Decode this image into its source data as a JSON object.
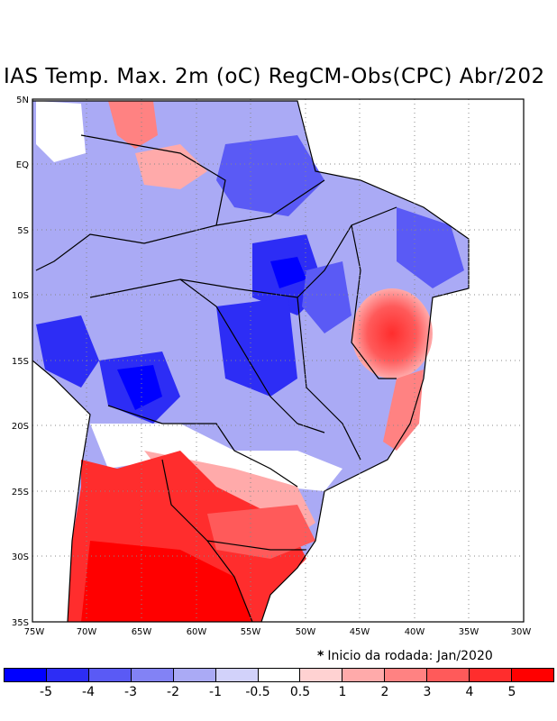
{
  "title": "IAS Temp. Max. 2m (oC) RegCM-Obs(CPC) Abr/202",
  "note": "Inicio da rodada: Jan/2020",
  "axes": {
    "lat_labels": [
      "5N",
      "EQ",
      "5S",
      "10S",
      "15S",
      "20S",
      "25S",
      "30S",
      "35S"
    ],
    "lon_labels": [
      "75W",
      "70W",
      "65W",
      "60W",
      "55W",
      "50W",
      "45W",
      "40W",
      "35W",
      "30W"
    ]
  },
  "colorbar": {
    "colors": [
      "#0000ff",
      "#2d2df5",
      "#5a5af5",
      "#8282f5",
      "#aaaaf5",
      "#d2d2fa",
      "#ffffff",
      "#ffd2d2",
      "#ffaaaa",
      "#ff8282",
      "#ff5a5a",
      "#ff2d2d",
      "#ff0000"
    ],
    "labels": [
      "-5",
      "-4",
      "-3",
      "-2",
      "-1",
      "-0.5",
      "0.5",
      "1",
      "2",
      "3",
      "4",
      "5"
    ]
  }
}
